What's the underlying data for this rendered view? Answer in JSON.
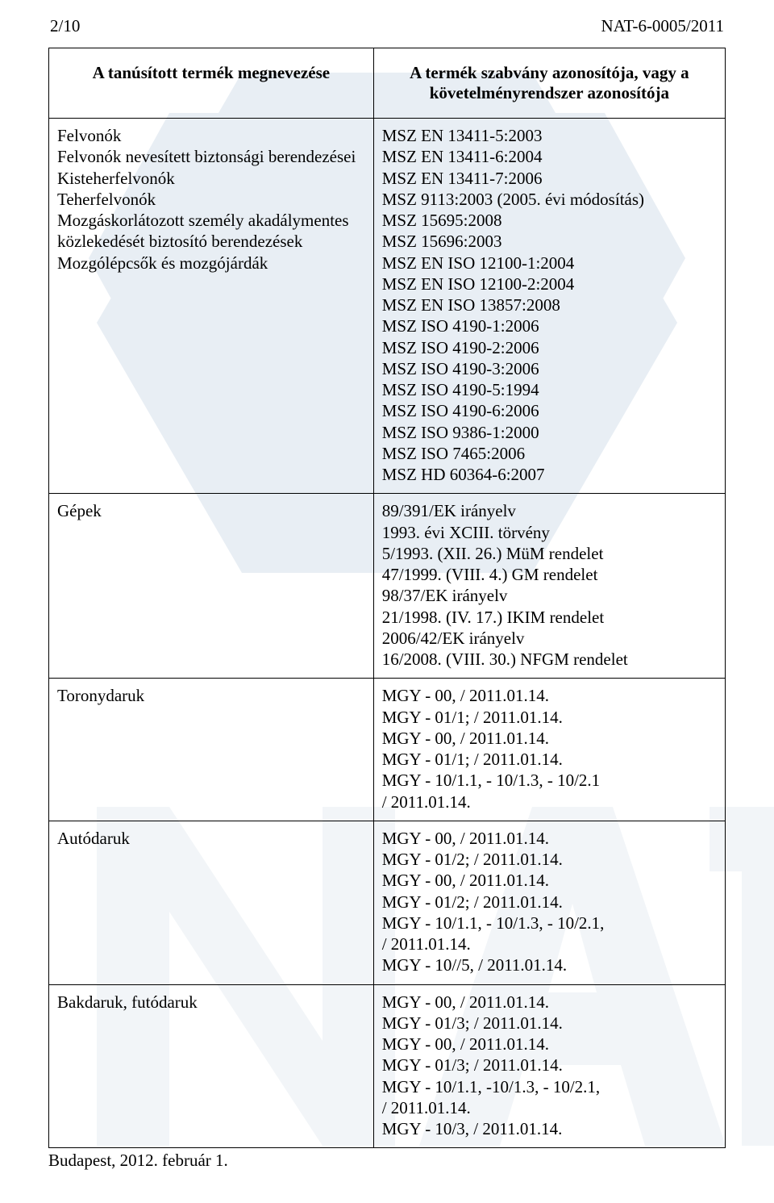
{
  "watermark": {
    "hex_fill": "#e8eef4",
    "letter_fill": "#f2f5f8"
  },
  "header": {
    "page_indicator": "2/10",
    "doc_ref": "NAT-6-0005/2011"
  },
  "table": {
    "col_left_header": "A tanúsított termék megnevezése",
    "col_right_header": "A termék szabvány azonosítója, vagy a követelményrendszer azonosítója",
    "rows": [
      {
        "left": [
          "Felvonók",
          "Felvonók nevesített biztonsági berendezései",
          "Kisteherfelvonók",
          "Teherfelvonók",
          "Mozgáskorlátozott személy akadálymentes közlekedését biztosító berendezések",
          "Mozgólépcsők és mozgójárdák"
        ],
        "right": [
          "MSZ EN 13411-5:2003",
          "MSZ EN 13411-6:2004",
          "MSZ EN 13411-7:2006",
          "MSZ 9113:2003 (2005. évi módosítás)",
          "MSZ 15695:2008",
          "MSZ 15696:2003",
          "MSZ EN ISO 12100-1:2004",
          "MSZ EN ISO 12100-2:2004",
          "MSZ EN ISO 13857:2008",
          "MSZ ISO 4190-1:2006",
          "MSZ ISO 4190-2:2006",
          "MSZ ISO 4190-3:2006",
          "MSZ ISO 4190-5:1994",
          "MSZ ISO 4190-6:2006",
          "MSZ ISO 9386-1:2000",
          "MSZ ISO 7465:2006",
          "MSZ HD 60364-6:2007"
        ]
      },
      {
        "left": [
          "Gépek"
        ],
        "right": [
          "89/391/EK irányelv",
          "1993. évi XCIII. törvény",
          "5/1993. (XII. 26.) MüM rendelet",
          "47/1999. (VIII. 4.) GM rendelet",
          "98/37/EK irányelv",
          "21/1998. (IV. 17.) IKIM rendelet",
          "2006/42/EK irányelv",
          "16/2008. (VIII. 30.) NFGM rendelet"
        ]
      },
      {
        "left": [
          "Toronydaruk"
        ],
        "right": [
          "MGY - 00, / 2011.01.14.",
          "MGY - 01/1; / 2011.01.14.",
          "MGY - 00, / 2011.01.14.",
          "MGY - 01/1; / 2011.01.14.",
          "MGY - 10/1.1,  - 10/1.3,  - 10/2.1",
          "/ 2011.01.14."
        ]
      },
      {
        "left": [
          "Autódaruk"
        ],
        "right": [
          "MGY - 00, / 2011.01.14.",
          "MGY - 01/2; / 2011.01.14.",
          "MGY - 00, / 2011.01.14.",
          "MGY - 01/2; / 2011.01.14.",
          "MGY - 10/1.1,  - 10/1.3,  - 10/2.1,",
          "/ 2011.01.14.",
          "MGY - 10//5, / 2011.01.14."
        ]
      },
      {
        "left": [
          "Bakdaruk, futódaruk"
        ],
        "right": [
          "MGY - 00, / 2011.01.14.",
          "MGY - 01/3; / 2011.01.14.",
          "MGY - 00, / 2011.01.14.",
          "MGY - 01/3; / 2011.01.14.",
          "MGY - 10/1.1,  -10/1.3,  - 10/2.1,",
          "/ 2011.01.14.",
          "MGY - 10/3, / 2011.01.14."
        ]
      }
    ]
  },
  "footer": {
    "text": "Budapest, 2012. február 1."
  }
}
